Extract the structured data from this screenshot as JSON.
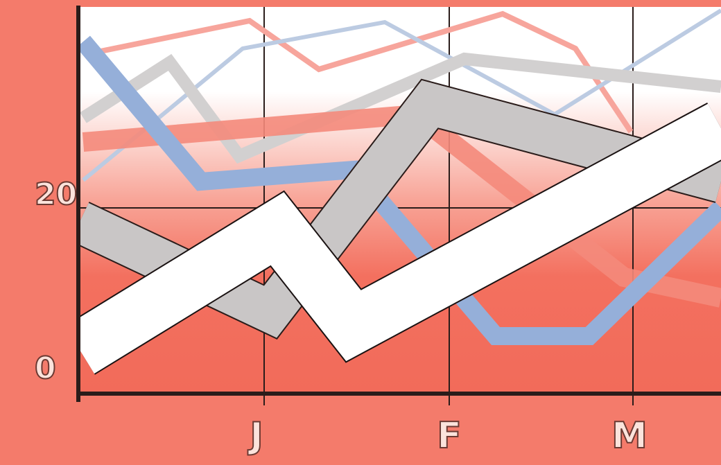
{
  "y_axis": {
    "labels": [
      "20",
      "0"
    ]
  },
  "x_axis": {
    "labels": [
      "J",
      "F",
      "M"
    ]
  }
}
